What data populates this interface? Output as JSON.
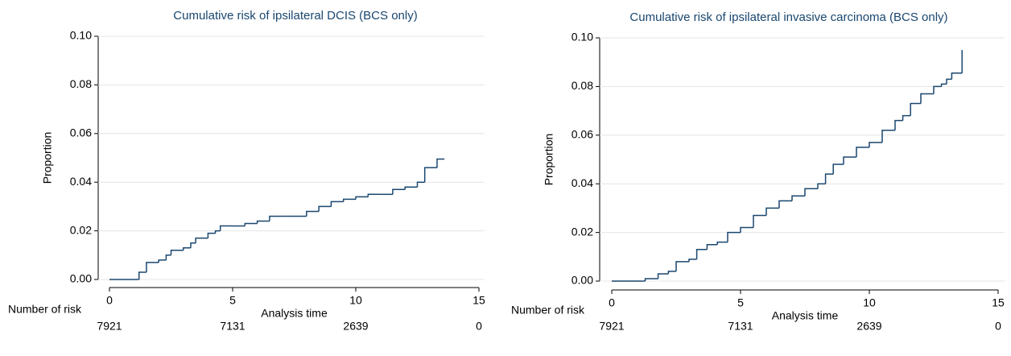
{
  "chart_data": [
    {
      "type": "line",
      "step": true,
      "grid": true,
      "title": "Cumulative risk of ipsilateral DCIS (BCS only)",
      "xlabel": "Analysis time",
      "ylabel": "Proportion",
      "x": [
        0,
        1.0,
        1.2,
        1.5,
        2.0,
        2.3,
        2.5,
        3.0,
        3.3,
        3.5,
        4.0,
        4.3,
        4.5,
        5.0,
        5.5,
        6.0,
        6.5,
        7.0,
        7.5,
        8.0,
        8.5,
        9.0,
        9.5,
        10.0,
        10.5,
        11.0,
        11.5,
        12.0,
        12.5,
        12.8,
        13.3,
        13.6
      ],
      "series": [
        {
          "color": "#1a476f",
          "values": [
            0,
            0,
            0.003,
            0.007,
            0.008,
            0.01,
            0.012,
            0.013,
            0.015,
            0.017,
            0.019,
            0.02,
            0.022,
            0.022,
            0.023,
            0.024,
            0.026,
            0.026,
            0.026,
            0.028,
            0.03,
            0.032,
            0.033,
            0.034,
            0.035,
            0.035,
            0.037,
            0.038,
            0.04,
            0.046,
            0.0495,
            0.0495
          ]
        }
      ],
      "xlim": [
        0,
        15
      ],
      "xticks": [
        0,
        5,
        10,
        15
      ],
      "ylim": [
        0,
        0.1
      ],
      "yticks": [
        {
          "value": 0,
          "label": "0.00"
        },
        {
          "value": 0.02,
          "label": "0.02"
        },
        {
          "value": 0.04,
          "label": "0.04"
        },
        {
          "value": 0.06,
          "label": "0.06"
        },
        {
          "value": 0.08,
          "label": "0.08"
        },
        {
          "value": 0.1,
          "label": "0.10"
        }
      ],
      "risk_table": {
        "label": "Number of risk",
        "values": [
          7921,
          7131,
          2639,
          0
        ]
      }
    },
    {
      "type": "line",
      "step": true,
      "grid": true,
      "title": "Cumulative risk of ipsilateral invasive carcinoma (BCS only)",
      "xlabel": "Analysis time",
      "ylabel": "Proportion",
      "x": [
        0,
        1.0,
        1.3,
        1.8,
        2.2,
        2.5,
        3.0,
        3.3,
        3.7,
        4.1,
        4.5,
        5.0,
        5.5,
        6.0,
        6.5,
        7.0,
        7.5,
        8.0,
        8.3,
        8.6,
        9.0,
        9.5,
        10.0,
        10.5,
        11.0,
        11.3,
        11.6,
        12.0,
        12.5,
        12.8,
        13.0,
        13.2,
        13.6
      ],
      "series": [
        {
          "color": "#1a476f",
          "values": [
            0,
            0,
            0.001,
            0.003,
            0.004,
            0.008,
            0.009,
            0.013,
            0.015,
            0.016,
            0.02,
            0.022,
            0.027,
            0.03,
            0.033,
            0.035,
            0.038,
            0.04,
            0.044,
            0.048,
            0.051,
            0.055,
            0.057,
            0.062,
            0.066,
            0.068,
            0.073,
            0.077,
            0.08,
            0.081,
            0.083,
            0.0855,
            0.095
          ]
        }
      ],
      "xlim": [
        0,
        15
      ],
      "xticks": [
        0,
        5,
        10,
        15
      ],
      "ylim": [
        0,
        0.1
      ],
      "yticks": [
        {
          "value": 0,
          "label": "0.00"
        },
        {
          "value": 0.02,
          "label": "0.02"
        },
        {
          "value": 0.04,
          "label": "0.04"
        },
        {
          "value": 0.06,
          "label": "0.06"
        },
        {
          "value": 0.08,
          "label": "0.08"
        },
        {
          "value": 0.1,
          "label": "0.10"
        }
      ],
      "risk_table": {
        "label": "Number of risk",
        "values": [
          7921,
          7131,
          2639,
          0
        ]
      }
    }
  ]
}
